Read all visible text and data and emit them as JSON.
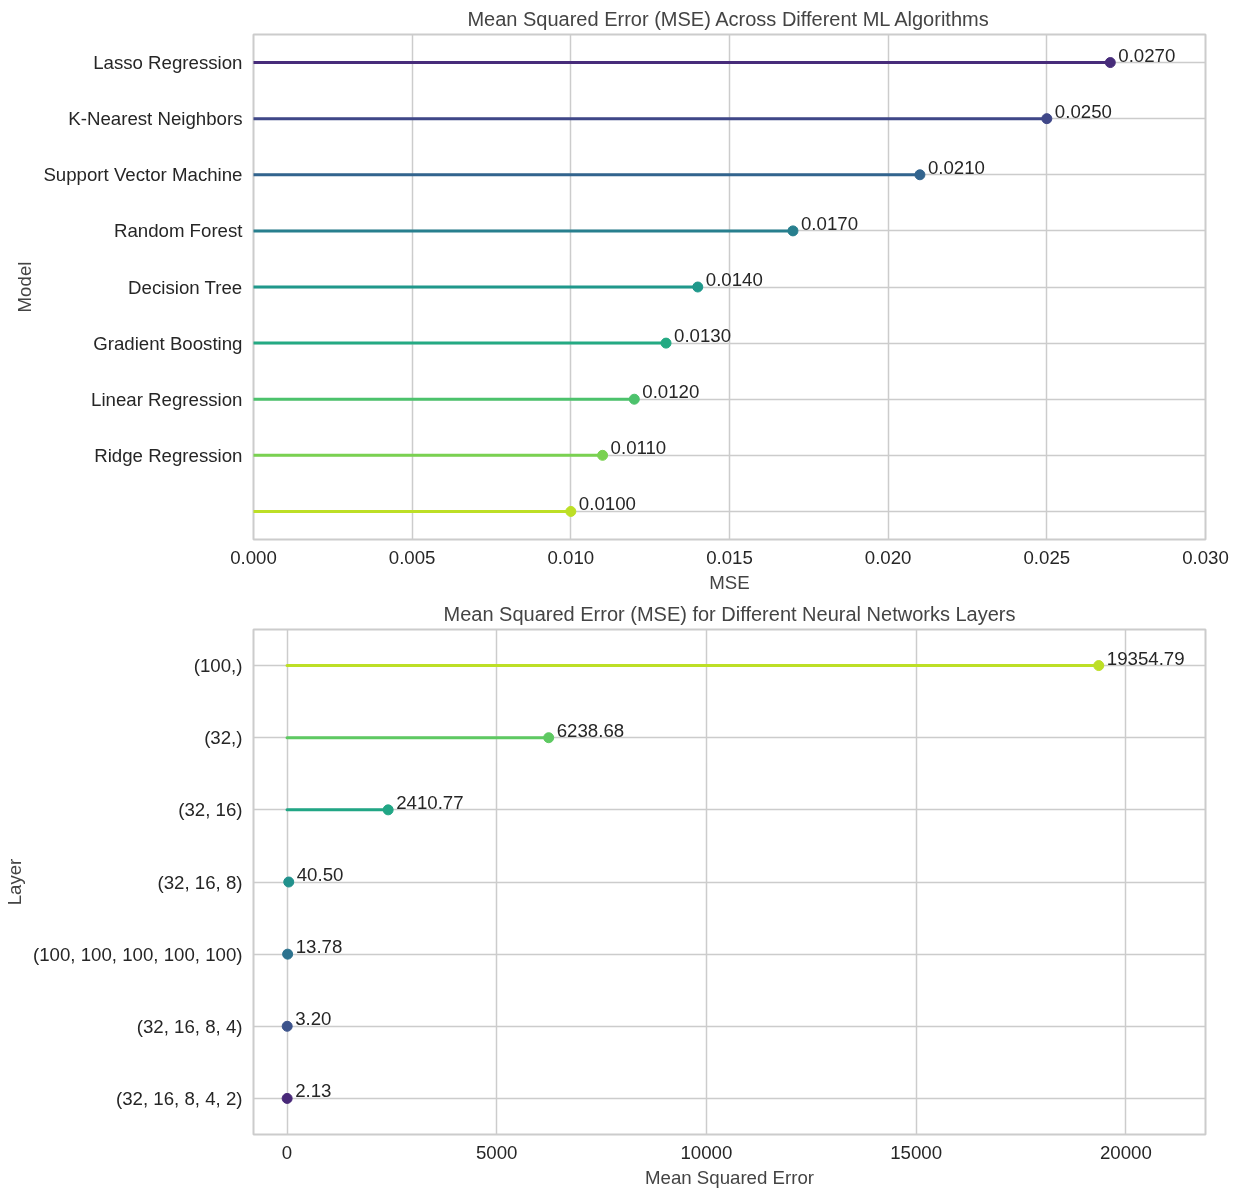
{
  "chart_data": [
    {
      "type": "lollipop",
      "orientation": "horizontal",
      "title": "Mean Squared Error (MSE) Across Different ML Algorithms",
      "xlabel": "MSE",
      "ylabel": "Model",
      "categories": [
        "Lasso Regression",
        "K-Nearest Neighbors",
        "Support Vector Machine",
        "Random Forest",
        "Decision Tree",
        "Gradient Boosting",
        "Linear Regression",
        "Ridge Regression",
        null
      ],
      "values": [
        0.027,
        0.025,
        0.021,
        0.017,
        0.014,
        0.013,
        0.012,
        0.011,
        0.01
      ],
      "value_labels": [
        "0.0270",
        "0.0250",
        "0.0210",
        "0.0170",
        "0.0140",
        "0.0130",
        "0.0120",
        "0.0110",
        "0.0100"
      ],
      "colors": [
        "#472c7a",
        "#3f4788",
        "#32648e",
        "#277f8e",
        "#1f988b",
        "#24aa83",
        "#4cc26c",
        "#7ad151",
        "#bddf26"
      ],
      "xlim": [
        0,
        0.03
      ],
      "xticks": [
        {
          "value": 0,
          "label": "0.000"
        },
        {
          "value": 0.005,
          "label": "0.005"
        },
        {
          "value": 0.01,
          "label": "0.010"
        },
        {
          "value": 0.015,
          "label": "0.015"
        },
        {
          "value": 0.02,
          "label": "0.020"
        },
        {
          "value": 0.025,
          "label": "0.025"
        },
        {
          "value": 0.03,
          "label": "0.030"
        }
      ],
      "grid": true,
      "marker": "circle"
    },
    {
      "type": "lollipop",
      "orientation": "horizontal",
      "title": "Mean Squared Error (MSE) for Different Neural Networks Layers",
      "xlabel": "Mean Squared Error",
      "ylabel": "Layer",
      "categories": [
        "(100,)",
        "(32,)",
        "(32, 16)",
        "(32, 16, 8)",
        "(100, 100, 100, 100, 100)",
        "(32, 16, 8, 4)",
        "(32, 16, 8, 4, 2)"
      ],
      "values": [
        19354.79,
        6238.68,
        2410.77,
        40.5,
        13.78,
        3.2,
        2.13
      ],
      "value_labels": [
        "19354.79",
        "6238.68",
        "2410.77",
        "40.50",
        "13.78",
        "3.20",
        "2.13"
      ],
      "colors": [
        "#bddf26",
        "#5ec962",
        "#21a685",
        "#21918c",
        "#2c728e",
        "#3b528b",
        "#482878"
      ],
      "xlim": [
        -800,
        21900
      ],
      "xticks": [
        0,
        5000,
        10000,
        15000,
        20000
      ],
      "grid": true,
      "marker": "circle"
    }
  ]
}
